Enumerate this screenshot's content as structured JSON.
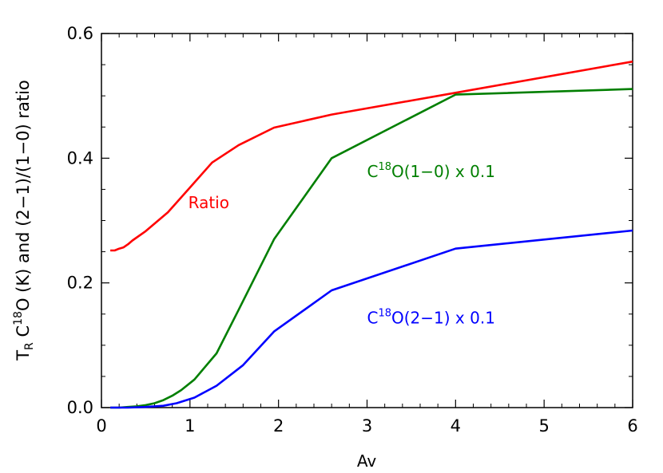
{
  "chart_data": {
    "type": "line",
    "xlabel": "Av",
    "ylabel": {
      "main": "T",
      "sub": "R",
      "rest1": " C",
      "sup": "18",
      "rest2": "O (K) and (2−1)/(1−0) ratio"
    },
    "xlim": [
      0,
      6
    ],
    "ylim": [
      0,
      0.6
    ],
    "x_ticks": [
      0,
      1,
      2,
      3,
      4,
      5,
      6
    ],
    "x_tick_labels": [
      "0",
      "1",
      "2",
      "3",
      "4",
      "5",
      "6"
    ],
    "y_ticks": [
      0,
      0.2,
      0.4,
      0.6
    ],
    "y_tick_labels": [
      "0.0",
      "0.2",
      "0.4",
      "0.6"
    ],
    "grid": false,
    "series": [
      {
        "id": "ratio",
        "color": "#ff0000",
        "x": [
          0.1,
          0.15,
          0.2,
          0.25,
          0.3,
          0.35,
          0.5,
          0.75,
          1.0,
          1.25,
          1.55,
          1.95,
          2.6,
          4.0,
          6.0
        ],
        "y": [
          0.252,
          0.252,
          0.255,
          0.257,
          0.262,
          0.268,
          0.283,
          0.313,
          0.353,
          0.393,
          0.421,
          0.449,
          0.47,
          0.505,
          0.555
        ]
      },
      {
        "id": "c18o-10",
        "color": "#007f00",
        "x": [
          0.1,
          0.2,
          0.3,
          0.4,
          0.5,
          0.6,
          0.7,
          0.8,
          0.9,
          1.05,
          1.3,
          1.55,
          1.95,
          2.6,
          4.0,
          6.0
        ],
        "y": [
          0.0,
          0.0,
          0.001,
          0.002,
          0.004,
          0.007,
          0.012,
          0.019,
          0.028,
          0.045,
          0.087,
          0.157,
          0.27,
          0.4,
          0.502,
          0.511
        ]
      },
      {
        "id": "c18o-21",
        "color": "#0000ff",
        "x": [
          0.1,
          0.3,
          0.5,
          0.7,
          0.85,
          1.05,
          1.3,
          1.6,
          1.95,
          2.6,
          4.0,
          6.0
        ],
        "y": [
          0.0,
          0.0,
          0.001,
          0.003,
          0.007,
          0.016,
          0.035,
          0.068,
          0.122,
          0.188,
          0.255,
          0.284
        ]
      }
    ],
    "annotations": [
      {
        "id": "ratio",
        "color": "#ff0000",
        "x": 0.98,
        "y": 0.32,
        "text": "Ratio"
      },
      {
        "id": "c18o-10",
        "color": "#007f00",
        "x": 3.0,
        "y": 0.37,
        "pre": "C",
        "sup": "18",
        "post": "O(1−0) x 0.1"
      },
      {
        "id": "c18o-21",
        "color": "#0000ff",
        "x": 3.0,
        "y": 0.135,
        "pre": "C",
        "sup": "18",
        "post": "O(2−1) x 0.1"
      }
    ]
  }
}
